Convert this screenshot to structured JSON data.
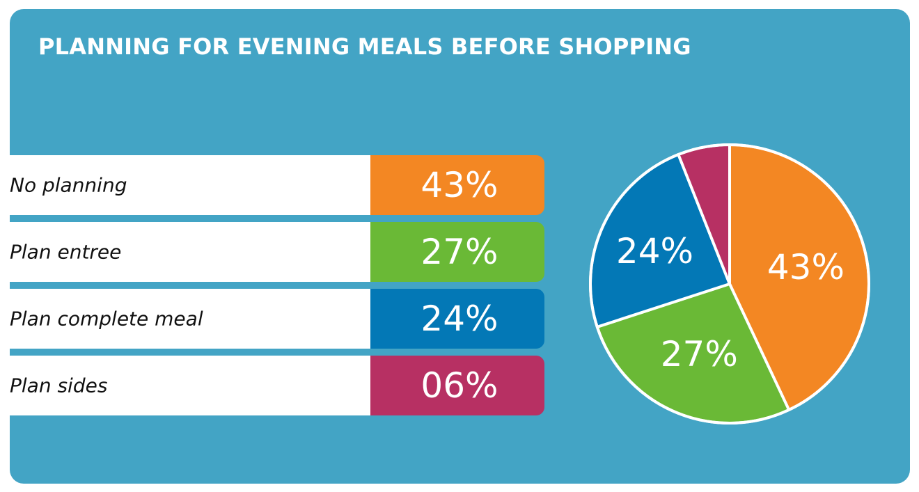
{
  "title": "PLANNING FOR EVENING MEALS BEFORE SHOPPING",
  "colors": {
    "background": "#43a4c5",
    "no_planning": "#f38723",
    "plan_entree": "#6ab936",
    "plan_complete_meal": "#0378b6",
    "plan_sides": "#b73063"
  },
  "rows": [
    {
      "label": "No planning",
      "value_text": "43%"
    },
    {
      "label": "Plan entree",
      "value_text": "27%"
    },
    {
      "label": "Plan complete meal",
      "value_text": "24%"
    },
    {
      "label": "Plan sides",
      "value_text": "06%"
    }
  ],
  "chart_data": {
    "type": "pie",
    "title": "PLANNING FOR EVENING MEALS BEFORE SHOPPING",
    "categories": [
      "No planning",
      "Plan entree",
      "Plan complete meal",
      "Plan sides"
    ],
    "values": [
      43,
      27,
      24,
      6
    ],
    "colors": [
      "#f38723",
      "#6ab936",
      "#0378b6",
      "#b73063"
    ],
    "slice_labels": [
      "43%",
      "27%",
      "24%",
      ""
    ]
  }
}
